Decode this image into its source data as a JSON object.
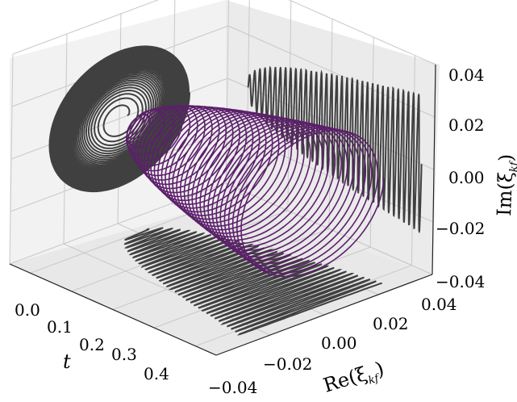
{
  "chart_data": {
    "type": "line3d",
    "title": "",
    "axes": {
      "t": {
        "label": "t",
        "range": [
          -0.05,
          0.45
        ],
        "ticks": [
          "0.0",
          "0.1",
          "0.2",
          "0.3",
          "0.4"
        ]
      },
      "re": {
        "label": "Re(ξ",
        "sub": "kf",
        "range": [
          -0.04,
          0.04
        ],
        "ticks": [
          "−0.04",
          "−0.02",
          "0.00",
          "0.02",
          "0.04"
        ]
      },
      "im": {
        "label": "Im(ξ",
        "sub": "kf",
        "range": [
          -0.04,
          0.04
        ],
        "ticks": [
          "−0.04",
          "−0.02",
          "0.00",
          "0.02",
          "0.04"
        ]
      }
    },
    "grid": true,
    "series": [
      {
        "kind": "spiral-3d",
        "t_range": [
          0.0,
          0.42
        ],
        "turns": 34,
        "radius_start": 0.003,
        "radius_end": 0.026,
        "color": "#5c1f6b"
      },
      {
        "kind": "projection-t-re-im-plane",
        "color": "#404040"
      },
      {
        "kind": "projection-t-re-floor",
        "color": "#404040"
      },
      {
        "kind": "projection-t-im-wall",
        "color": "#404040"
      }
    ]
  }
}
